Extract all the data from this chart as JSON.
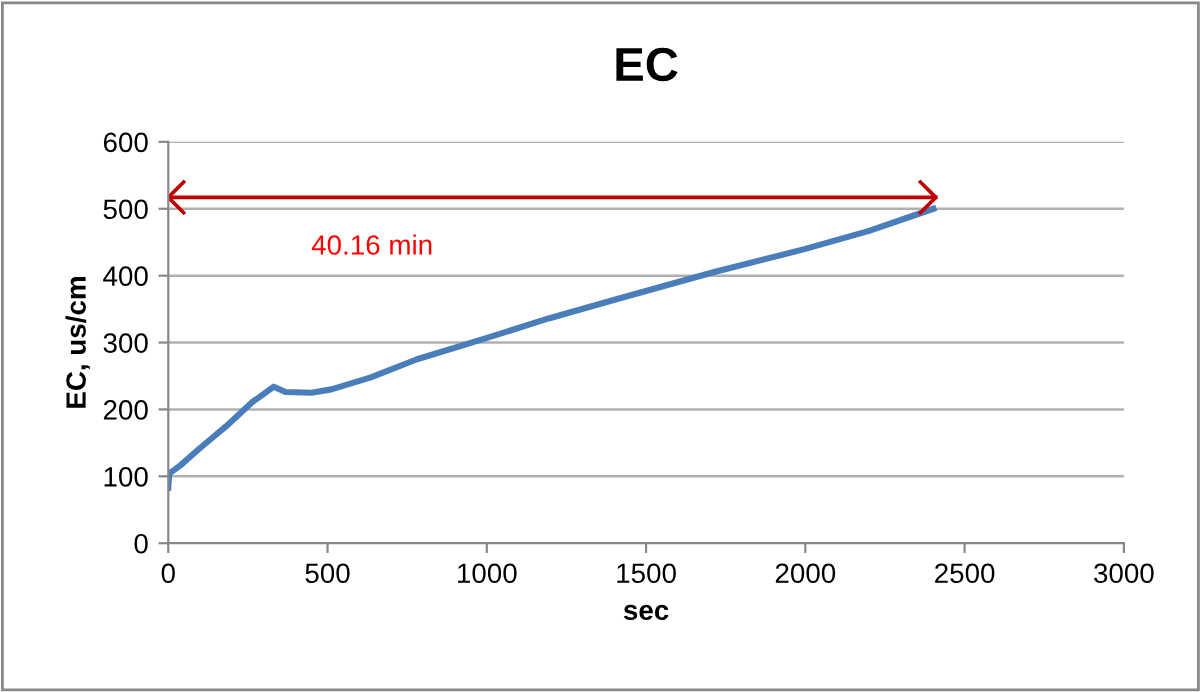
{
  "chart_data": {
    "type": "line",
    "title": "EC",
    "xlabel": "sec",
    "ylabel": "EC, us/cm",
    "series": [
      {
        "color": "#4a7ebb",
        "x": [
          0,
          3,
          37,
          99,
          182,
          264,
          331,
          368,
          450,
          512,
          636,
          781,
          988,
          1194,
          1401,
          1711,
          2000,
          2200,
          2402
        ],
        "values": [
          83,
          104,
          116,
          142,
          175,
          211,
          234,
          226,
          225,
          230,
          248,
          275,
          305,
          336,
          364,
          405,
          440,
          467,
          500
        ]
      },
      {
        "type": "line",
        "line_style": "solid",
        "color": "#c00000",
        "x": [
          0,
          2409.6
        ],
        "values": [
          517,
          517
        ]
      }
    ],
    "xlim": [
      0,
      3000
    ],
    "xticks": [
      0,
      500,
      1000,
      1500,
      2000,
      2500,
      3000
    ],
    "ylim": [
      0,
      600
    ],
    "yticks": [
      0,
      100,
      200,
      300,
      400,
      500,
      600
    ],
    "grid": "y",
    "legend": false,
    "marker": "none",
    "line_style": "solid",
    "annotations": [
      {
        "text": "40.16 min",
        "x": 640,
        "y": 517
      }
    ]
  }
}
